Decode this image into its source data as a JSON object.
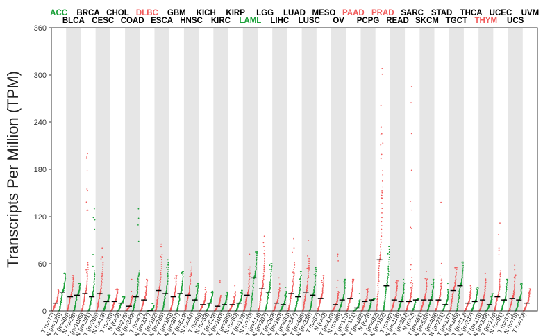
{
  "chart_data": {
    "type": "scatter",
    "ylabel": "Transcripts Per Million (TPM)",
    "ylim": [
      0,
      360
    ],
    "yticks": [
      0,
      60,
      120,
      180,
      240,
      300,
      360
    ],
    "colors": {
      "tumor": "#f15b5b",
      "normal": "#1aa038",
      "highlight_red": "#f15b5b",
      "highlight_green": "#1aa038",
      "default_label": "#000000"
    },
    "categories": [
      {
        "name": "ACC",
        "label_color": "green",
        "groups": [
          {
            "label": "T (n=77)",
            "median": 10,
            "max": 27
          },
          {
            "label": "N (n=128)",
            "median": 24,
            "max": 48
          }
        ]
      },
      {
        "name": "BLCA",
        "label_color": "black",
        "groups": [
          {
            "label": "T (n=404)",
            "median": 18,
            "max": 45
          },
          {
            "label": "N (n=28)",
            "median": 20,
            "max": 35
          }
        ]
      },
      {
        "name": "BRCA",
        "label_color": "black",
        "groups": [
          {
            "label": "T (n=1085)",
            "median": 22,
            "max": 200
          },
          {
            "label": "N (n=291)",
            "median": 18,
            "max": 130
          }
        ]
      },
      {
        "name": "CESC",
        "label_color": "black",
        "groups": [
          {
            "label": "T (n=306)",
            "median": 22,
            "max": 80
          },
          {
            "label": "N (n=13)",
            "median": 12,
            "max": 20
          }
        ]
      },
      {
        "name": "CHOL",
        "label_color": "black",
        "groups": [
          {
            "label": "T (n=36)",
            "median": 12,
            "max": 28
          },
          {
            "label": "N (n=9)",
            "median": 10,
            "max": 18
          }
        ]
      },
      {
        "name": "COAD",
        "label_color": "black",
        "groups": [
          {
            "label": "T (n=275)",
            "median": 6,
            "max": 40
          },
          {
            "label": "N (n=349)",
            "median": 18,
            "max": 130
          }
        ]
      },
      {
        "name": "DLBC",
        "label_color": "red",
        "groups": [
          {
            "label": "T (n=47)",
            "median": 14,
            "max": 40
          },
          {
            "label": "N (n=337)",
            "median": 1,
            "max": 10
          }
        ]
      },
      {
        "name": "ESCA",
        "label_color": "black",
        "groups": [
          {
            "label": "T (n=182)",
            "median": 26,
            "max": 85
          },
          {
            "label": "N (n=286)",
            "median": 22,
            "max": 65
          }
        ]
      },
      {
        "name": "GBM",
        "label_color": "black",
        "groups": [
          {
            "label": "T (n=163)",
            "median": 18,
            "max": 45
          },
          {
            "label": "N (n=207)",
            "median": 22,
            "max": 50
          }
        ]
      },
      {
        "name": "HNSC",
        "label_color": "black",
        "groups": [
          {
            "label": "T (n=519)",
            "median": 20,
            "max": 62
          },
          {
            "label": "N (n=44)",
            "median": 14,
            "max": 35
          }
        ]
      },
      {
        "name": "KICH",
        "label_color": "black",
        "groups": [
          {
            "label": "T (n=66)",
            "median": 8,
            "max": 30
          },
          {
            "label": "N (n=53)",
            "median": 10,
            "max": 25
          }
        ]
      },
      {
        "name": "KIRC",
        "label_color": "black",
        "groups": [
          {
            "label": "T (n=523)",
            "median": 6,
            "max": 38
          },
          {
            "label": "N (n=100)",
            "median": 8,
            "max": 24
          }
        ]
      },
      {
        "name": "KIRP",
        "label_color": "black",
        "groups": [
          {
            "label": "T (n=286)",
            "median": 8,
            "max": 32
          },
          {
            "label": "N (n=60)",
            "median": 10,
            "max": 26
          }
        ]
      },
      {
        "name": "LAML",
        "label_color": "green",
        "groups": [
          {
            "label": "T (n=173)",
            "median": 20,
            "max": 72
          },
          {
            "label": "N (n=70)",
            "median": 42,
            "max": 75
          }
        ]
      },
      {
        "name": "LGG",
        "label_color": "black",
        "groups": [
          {
            "label": "T (n=518)",
            "median": 28,
            "max": 95
          },
          {
            "label": "N (n=207)",
            "median": 24,
            "max": 60
          }
        ]
      },
      {
        "name": "LIHC",
        "label_color": "black",
        "groups": [
          {
            "label": "T (n=369)",
            "median": 10,
            "max": 42
          },
          {
            "label": "N (n=160)",
            "median": 8,
            "max": 30
          }
        ]
      },
      {
        "name": "LUAD",
        "label_color": "black",
        "groups": [
          {
            "label": "T (n=483)",
            "median": 22,
            "max": 92
          },
          {
            "label": "N (n=347)",
            "median": 18,
            "max": 50
          }
        ]
      },
      {
        "name": "LUSC",
        "label_color": "black",
        "groups": [
          {
            "label": "T (n=486)",
            "median": 24,
            "max": 90
          },
          {
            "label": "N (n=338)",
            "median": 20,
            "max": 55
          }
        ]
      },
      {
        "name": "MESO",
        "label_color": "black",
        "groups": [
          {
            "label": "T (n=87)",
            "median": 16,
            "max": 45
          },
          {
            "label": "N (n=0)",
            "median": null,
            "max": null
          }
        ]
      },
      {
        "name": "OV",
        "label_color": "black",
        "groups": [
          {
            "label": "T (n=426)",
            "median": 8,
            "max": 72
          },
          {
            "label": "N (n=88)",
            "median": 14,
            "max": 40
          }
        ]
      },
      {
        "name": "PAAD",
        "label_color": "red",
        "groups": [
          {
            "label": "T (n=179)",
            "median": 16,
            "max": 40
          },
          {
            "label": "N (n=171)",
            "median": 4,
            "max": 22
          }
        ]
      },
      {
        "name": "PCPG",
        "label_color": "black",
        "groups": [
          {
            "label": "T (n=182)",
            "median": 12,
            "max": 28
          },
          {
            "label": "N (n=3)",
            "median": 14,
            "max": 16
          }
        ]
      },
      {
        "name": "PRAD",
        "label_color": "red",
        "groups": [
          {
            "label": "T (n=492)",
            "median": 65,
            "max": 308
          },
          {
            "label": "N (n=152)",
            "median": 32,
            "max": 82
          }
        ]
      },
      {
        "name": "READ",
        "label_color": "black",
        "groups": [
          {
            "label": "T (n=92)",
            "median": 14,
            "max": 38
          },
          {
            "label": "N (n=318)",
            "median": 12,
            "max": 40
          }
        ]
      },
      {
        "name": "SARC",
        "label_color": "black",
        "groups": [
          {
            "label": "T (n=262)",
            "median": 12,
            "max": 285
          },
          {
            "label": "N (n=2)",
            "median": 14,
            "max": 16
          }
        ]
      },
      {
        "name": "SKCM",
        "label_color": "black",
        "groups": [
          {
            "label": "T (n=461)",
            "median": 14,
            "max": 50
          },
          {
            "label": "N (n=558)",
            "median": 14,
            "max": 40
          }
        ]
      },
      {
        "name": "STAD",
        "label_color": "black",
        "groups": [
          {
            "label": "T (n=408)",
            "median": 14,
            "max": 138
          },
          {
            "label": "N (n=211)",
            "median": 8,
            "max": 35
          }
        ]
      },
      {
        "name": "TGCT",
        "label_color": "black",
        "groups": [
          {
            "label": "T (n=137)",
            "median": 26,
            "max": 55
          },
          {
            "label": "N (n=165)",
            "median": 32,
            "max": 62
          }
        ]
      },
      {
        "name": "THCA",
        "label_color": "black",
        "groups": [
          {
            "label": "T (n=512)",
            "median": 10,
            "max": 32
          },
          {
            "label": "N (n=337)",
            "median": 12,
            "max": 30
          }
        ]
      },
      {
        "name": "THYM",
        "label_color": "red",
        "groups": [
          {
            "label": "T (n=118)",
            "median": 14,
            "max": 48
          },
          {
            "label": "N (n=339)",
            "median": 8,
            "max": 22
          }
        ]
      },
      {
        "name": "UCEC",
        "label_color": "black",
        "groups": [
          {
            "label": "T (n=174)",
            "median": 18,
            "max": 112
          },
          {
            "label": "N (n=91)",
            "median": 14,
            "max": 40
          }
        ]
      },
      {
        "name": "UCS",
        "label_color": "black",
        "groups": [
          {
            "label": "T (n=57)",
            "median": 16,
            "max": 58
          },
          {
            "label": "N (n=78)",
            "median": 14,
            "max": 35
          }
        ]
      },
      {
        "name": "UVM",
        "label_color": "black",
        "groups": [
          {
            "label": "T (n=79)",
            "median": 10,
            "max": 28
          }
        ]
      }
    ]
  }
}
